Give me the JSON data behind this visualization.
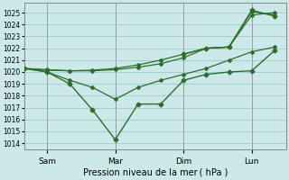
{
  "background_color": "#cce8e8",
  "grid_color": "#99cccc",
  "line_color": "#2d6e2d",
  "ylim": [
    1013.5,
    1025.8
  ],
  "yticks": [
    1014,
    1015,
    1016,
    1017,
    1018,
    1019,
    1020,
    1021,
    1022,
    1023,
    1024,
    1025
  ],
  "xlabel": "Pression niveau de la mer ( hPa )",
  "day_labels": [
    "Sam",
    "Mar",
    "Dim",
    "Lun"
  ],
  "day_positions": [
    1,
    4,
    7,
    10
  ],
  "day_vlines": [
    1,
    4,
    7,
    10
  ],
  "xlim": [
    0,
    11.5
  ],
  "series": [
    {
      "x": [
        0,
        1,
        2,
        3,
        4,
        5,
        6,
        7,
        8,
        9,
        10,
        11
      ],
      "y": [
        1020.3,
        1020.0,
        1019.0,
        1016.8,
        1014.3,
        1017.3,
        1017.3,
        1019.3,
        1019.8,
        1020.0,
        1020.1,
        1021.8
      ],
      "marker": "D",
      "markersize": 2.5,
      "linewidth": 1.0
    },
    {
      "x": [
        0,
        1,
        2,
        3,
        4,
        5,
        6,
        7,
        8,
        9,
        10,
        11
      ],
      "y": [
        1020.3,
        1020.2,
        1020.1,
        1020.1,
        1020.2,
        1020.4,
        1020.7,
        1021.2,
        1022.0,
        1022.1,
        1024.8,
        1025.0
      ],
      "marker": "D",
      "markersize": 2.0,
      "linewidth": 0.9
    },
    {
      "x": [
        0,
        1,
        2,
        3,
        4,
        5,
        6,
        7,
        8,
        9,
        10,
        11
      ],
      "y": [
        1020.3,
        1020.15,
        1020.1,
        1020.15,
        1020.3,
        1020.6,
        1021.0,
        1021.5,
        1022.0,
        1022.1,
        1025.1,
        1024.8
      ],
      "marker": "D",
      "markersize": 2.0,
      "linewidth": 0.9
    },
    {
      "x": [
        0,
        1,
        2,
        3,
        4,
        5,
        6,
        7,
        8,
        9,
        10,
        11
      ],
      "y": [
        1020.3,
        1020.0,
        1019.3,
        1018.7,
        1017.7,
        1018.7,
        1019.3,
        1019.8,
        1020.3,
        1021.0,
        1021.7,
        1022.1
      ],
      "marker": "D",
      "markersize": 2.0,
      "linewidth": 0.9
    },
    {
      "x": [
        7,
        8,
        9,
        10,
        11
      ],
      "y": [
        1021.5,
        1022.0,
        1022.1,
        1025.2,
        1024.7
      ],
      "marker": "D",
      "markersize": 2.5,
      "linewidth": 1.0
    }
  ]
}
